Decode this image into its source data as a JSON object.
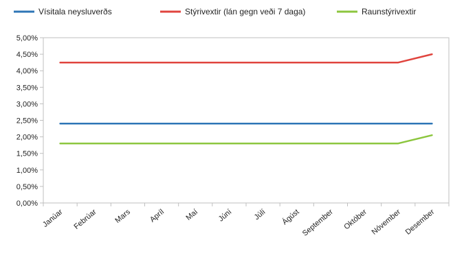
{
  "chart_data": {
    "type": "line",
    "categories": [
      "Janúar",
      "Febrúar",
      "Mars",
      "Apríl",
      "Maí",
      "Júní",
      "Júlí",
      "Ágúst",
      "September",
      "Október",
      "Nóvember",
      "Desember"
    ],
    "series": [
      {
        "name": "Vísitala neysluverðs",
        "color": "#2e75b6",
        "values": [
          2.4,
          2.4,
          2.4,
          2.4,
          2.4,
          2.4,
          2.4,
          2.4,
          2.4,
          2.4,
          2.4,
          2.4
        ]
      },
      {
        "name": "Stýrivextir (lán gegn veði 7 daga)",
        "color": "#e0443e",
        "values": [
          4.25,
          4.25,
          4.25,
          4.25,
          4.25,
          4.25,
          4.25,
          4.25,
          4.25,
          4.25,
          4.25,
          4.5
        ]
      },
      {
        "name": "Raunstýrivextir",
        "color": "#8cc63e",
        "values": [
          1.8,
          1.8,
          1.8,
          1.8,
          1.8,
          1.8,
          1.8,
          1.8,
          1.8,
          1.8,
          1.8,
          2.05
        ]
      }
    ],
    "yticks": [
      "0,00%",
      "0,50%",
      "1,00%",
      "1,50%",
      "2,00%",
      "2,50%",
      "3,00%",
      "3,50%",
      "4,00%",
      "4,50%",
      "5,00%"
    ],
    "ylim": [
      0,
      5
    ],
    "title": "",
    "xlabel": "",
    "ylabel": "",
    "grid": false,
    "legend_position": "top"
  }
}
